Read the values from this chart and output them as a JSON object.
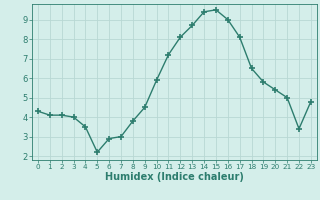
{
  "x": [
    0,
    1,
    2,
    3,
    4,
    5,
    6,
    7,
    8,
    9,
    10,
    11,
    12,
    13,
    14,
    15,
    16,
    17,
    18,
    19,
    20,
    21,
    22,
    23
  ],
  "y": [
    4.3,
    4.1,
    4.1,
    4.0,
    3.5,
    2.2,
    2.9,
    3.0,
    3.8,
    4.5,
    5.9,
    7.2,
    8.1,
    8.7,
    9.4,
    9.5,
    9.0,
    8.1,
    6.5,
    5.8,
    5.4,
    5.0,
    3.4,
    4.8
  ],
  "line_color": "#2d7d6e",
  "marker": "+",
  "marker_size": 4,
  "line_width": 1.0,
  "bg_color": "#d4eeea",
  "grid_color": "#b8d8d4",
  "xlabel": "Humidex (Indice chaleur)",
  "xlabel_fontsize": 7,
  "tick_fontsize": 6,
  "ylim": [
    1.8,
    9.8
  ],
  "yticks": [
    2,
    3,
    4,
    5,
    6,
    7,
    8,
    9
  ],
  "xlim": [
    -0.5,
    23.5
  ],
  "xticks": [
    0,
    1,
    2,
    3,
    4,
    5,
    6,
    7,
    8,
    9,
    10,
    11,
    12,
    13,
    14,
    15,
    16,
    17,
    18,
    19,
    20,
    21,
    22,
    23
  ]
}
